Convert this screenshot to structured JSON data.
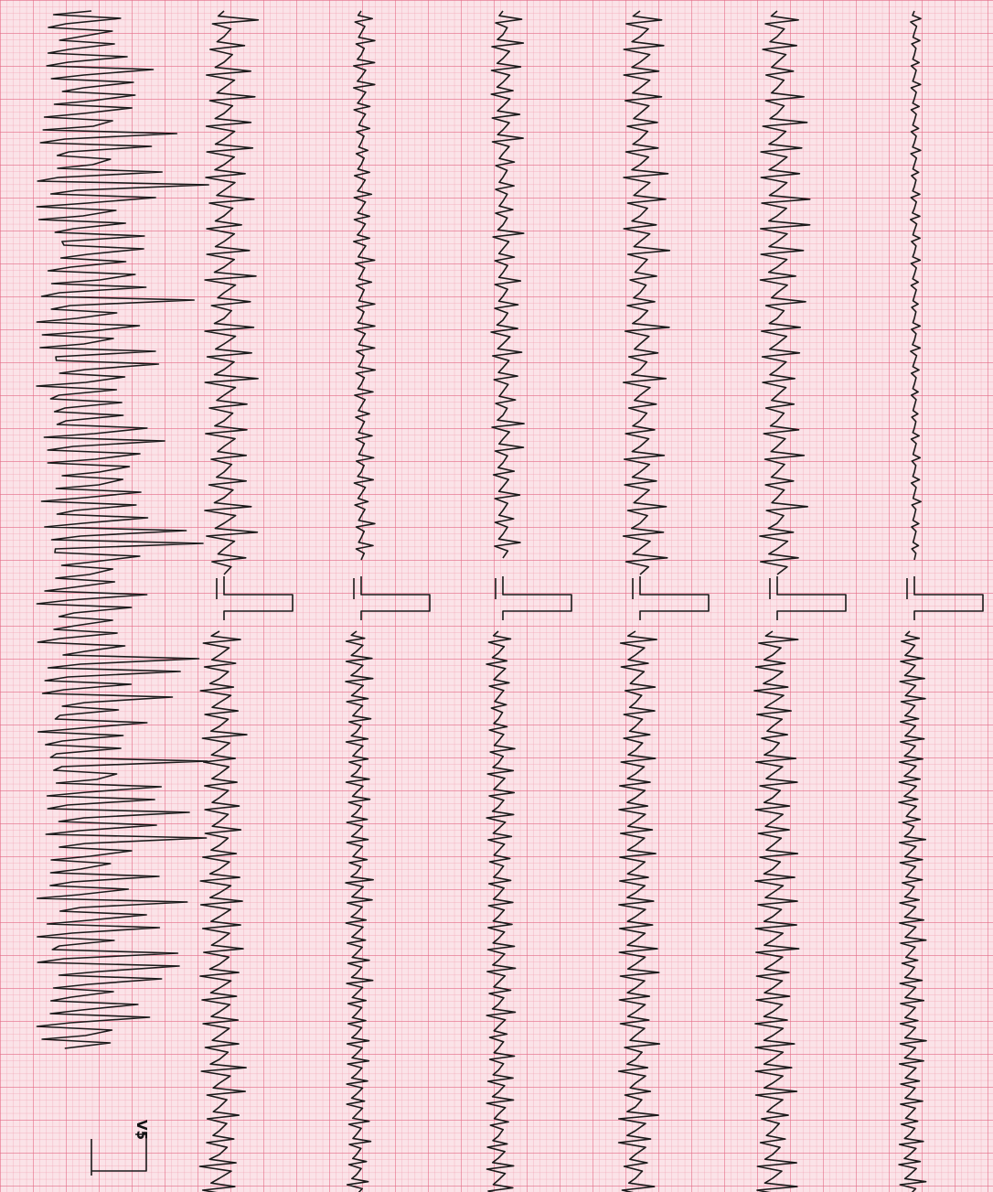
{
  "lead_label": "V5"
}
